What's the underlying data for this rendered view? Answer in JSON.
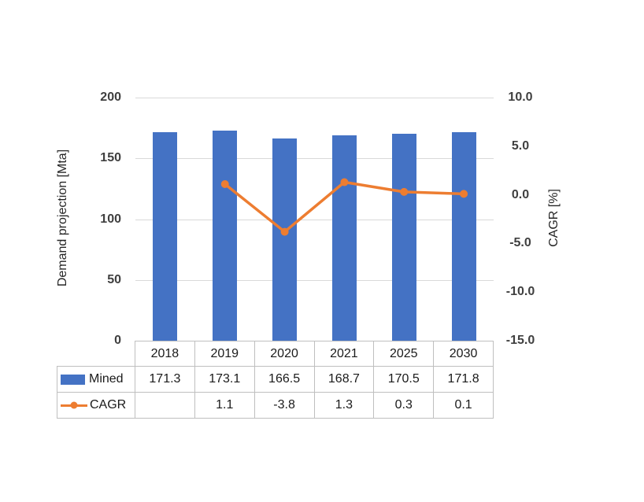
{
  "chart_data": {
    "type": "combo_bar_line",
    "title": "",
    "categories": [
      "2018",
      "2019",
      "2020",
      "2021",
      "2025",
      "2030"
    ],
    "series": [
      {
        "name": "Mined",
        "type": "bar",
        "axis": "left",
        "values": [
          171.3,
          173.1,
          166.5,
          168.7,
          170.5,
          171.8
        ]
      },
      {
        "name": "CAGR",
        "type": "line",
        "axis": "right",
        "values": [
          null,
          1.1,
          -3.8,
          1.3,
          0.3,
          0.1
        ]
      }
    ],
    "left_axis": {
      "label": "Demand projection [Mta]",
      "min": 0,
      "max": 200,
      "tick_values": [
        200,
        150,
        100,
        50,
        0
      ],
      "tick_labels": [
        "200",
        "150",
        "100",
        "50",
        "0"
      ]
    },
    "right_axis": {
      "label": "CAGR [%]",
      "min": -15,
      "max": 10,
      "tick_values": [
        10,
        5,
        0,
        -5,
        -10,
        -15
      ],
      "tick_labels": [
        "10.0",
        "5.0",
        "0.0",
        "-5.0",
        "-10.0",
        "-15.0"
      ]
    },
    "grid": true,
    "legend_position": "table-left",
    "data_table": {
      "header": [
        "2018",
        "2019",
        "2020",
        "2021",
        "2025",
        "2030"
      ],
      "rows": [
        {
          "label": "Mined",
          "values": [
            "171.3",
            "173.1",
            "166.5",
            "168.7",
            "170.5",
            "171.8"
          ]
        },
        {
          "label": "CAGR",
          "values": [
            "",
            "1.1",
            "-3.8",
            "1.3",
            "0.3",
            "0.1"
          ]
        }
      ]
    },
    "colors": {
      "bar": "#4472C4",
      "line": "#ED7D31",
      "gridline": "#D9D9D9",
      "table_border": "#BFBFBF",
      "tick_text": "#3F3F3F",
      "axis_title_text": "#262626",
      "table_text": "#1A1A1A",
      "background": "#FFFFFF"
    }
  }
}
